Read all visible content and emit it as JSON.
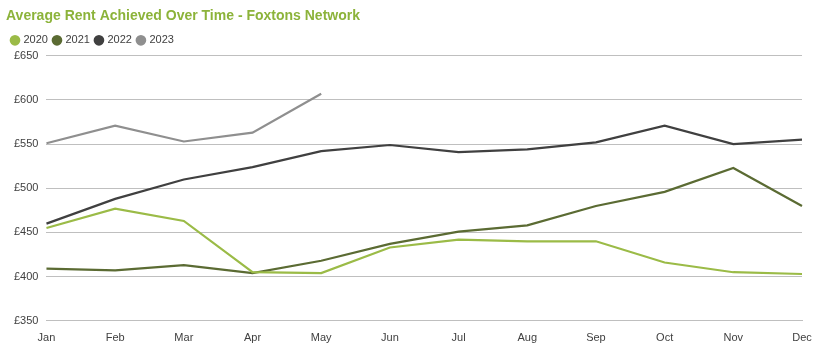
{
  "chart_data": {
    "type": "line",
    "title": "Average Rent Achieved Over Time - Foxtons Network",
    "categories": [
      "Jan",
      "Feb",
      "Mar",
      "Apr",
      "May",
      "Jun",
      "Jul",
      "Aug",
      "Sep",
      "Oct",
      "Nov",
      "Dec"
    ],
    "series": [
      {
        "name": "2020",
        "color": "#9bbb47",
        "values": [
          455,
          477,
          463,
          405,
          404,
          433,
          442,
          440,
          440,
          416,
          405,
          403
        ]
      },
      {
        "name": "2021",
        "color": "#5b6b33",
        "values": [
          409,
          407,
          413,
          404,
          418,
          437,
          451,
          458,
          480,
          496,
          523,
          480
        ]
      },
      {
        "name": "2022",
        "color": "#404040",
        "values": [
          460,
          488,
          510,
          524,
          542,
          549,
          541,
          544,
          552,
          571,
          550,
          555
        ]
      },
      {
        "name": "2023",
        "color": "#8f8f8f",
        "values": [
          551,
          571,
          553,
          563,
          607,
          null,
          null,
          null,
          null,
          null,
          null,
          null
        ]
      }
    ],
    "ylim": [
      350,
      650
    ],
    "yticks": [
      {
        "value": 350,
        "label": "£350"
      },
      {
        "value": 400,
        "label": "£400"
      },
      {
        "value": 450,
        "label": "£450"
      },
      {
        "value": 500,
        "label": "£500"
      },
      {
        "value": 550,
        "label": "£550"
      },
      {
        "value": 600,
        "label": "£600"
      },
      {
        "value": 650,
        "label": "£650"
      }
    ],
    "grid": true,
    "legend": "top-left",
    "marker": "none"
  }
}
